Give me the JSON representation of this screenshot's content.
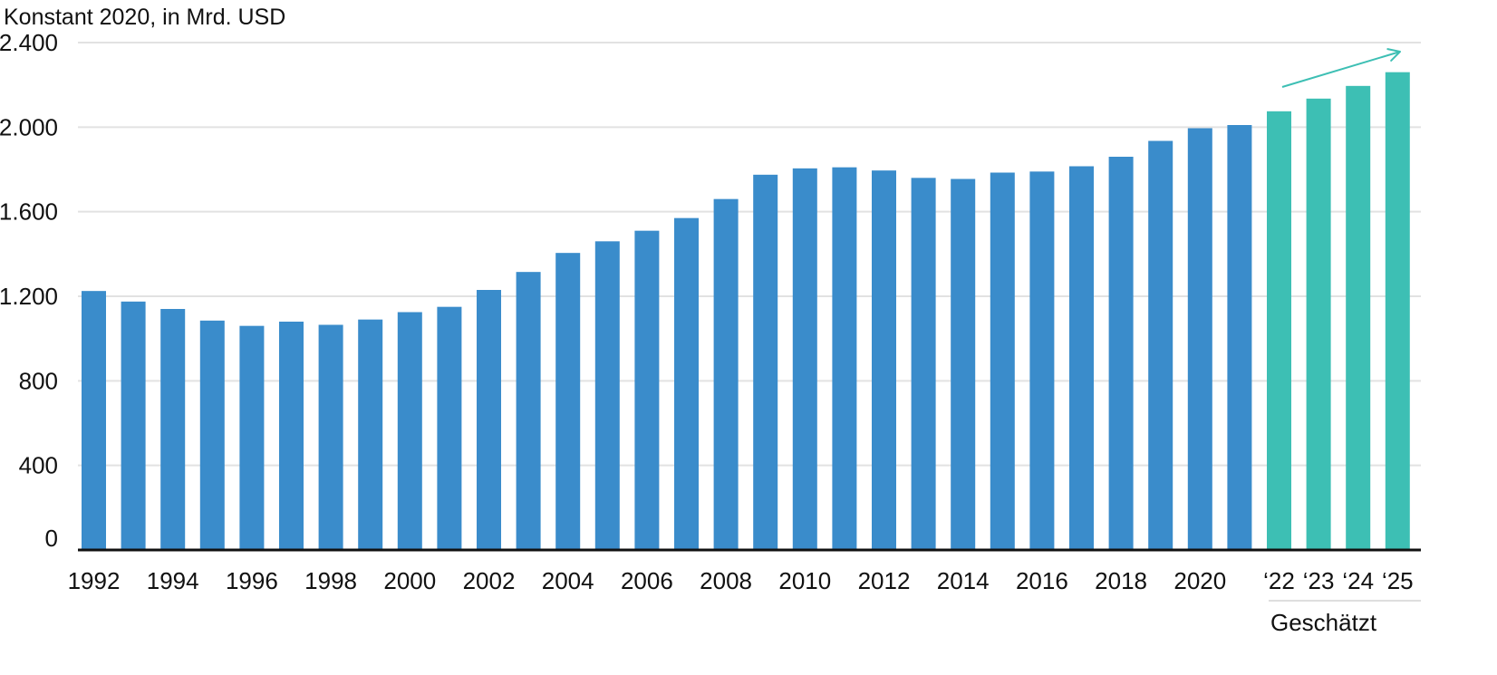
{
  "chart_data": {
    "type": "bar",
    "ylabel": "Konstant 2020, in Mrd. USD",
    "ylim": [
      0,
      2400
    ],
    "yticks": [
      0,
      400,
      800,
      1200,
      1600,
      2000,
      2400
    ],
    "ytick_labels": [
      "0",
      "400",
      "800",
      "1.200",
      "1.600",
      "2.000",
      "2.400"
    ],
    "grid": true,
    "categories": [
      "1992",
      "1993",
      "1994",
      "1995",
      "1996",
      "1997",
      "1998",
      "1999",
      "2000",
      "2001",
      "2002",
      "2003",
      "2004",
      "2005",
      "2006",
      "2007",
      "2008",
      "2009",
      "2010",
      "2011",
      "2012",
      "2013",
      "2014",
      "2015",
      "2016",
      "2017",
      "2018",
      "2019",
      "2020",
      "2021",
      "2022",
      "2023",
      "2024",
      "2025"
    ],
    "xtick_labels": [
      "1992",
      "",
      "1994",
      "",
      "1996",
      "",
      "1998",
      "",
      "2000",
      "",
      "2002",
      "",
      "2004",
      "",
      "2006",
      "",
      "2008",
      "",
      "2010",
      "",
      "2012",
      "",
      "2014",
      "",
      "2016",
      "",
      "2018",
      "",
      "2020",
      "",
      "‘22",
      "‘23",
      "‘24",
      "‘25"
    ],
    "series": [
      {
        "values": [
          1225,
          1175,
          1140,
          1085,
          1060,
          1080,
          1065,
          1090,
          1125,
          1150,
          1230,
          1315,
          1405,
          1460,
          1510,
          1570,
          1660,
          1775,
          1805,
          1810,
          1795,
          1760,
          1755,
          1785,
          1790,
          1815,
          1860,
          1935,
          1995,
          2010,
          2075,
          2135,
          2195,
          2260
        ],
        "estimated": [
          false,
          false,
          false,
          false,
          false,
          false,
          false,
          false,
          false,
          false,
          false,
          false,
          false,
          false,
          false,
          false,
          false,
          false,
          false,
          false,
          false,
          false,
          false,
          false,
          false,
          false,
          false,
          false,
          false,
          false,
          true,
          true,
          true,
          true
        ]
      }
    ],
    "forecast_group_label": "Geschätzt",
    "colors": {
      "actual": "#3a8ccb",
      "estimated": "#3dbfb4",
      "trend_arrow": "#3dbfb4",
      "gridline": "#e2e2e2",
      "baseline": "#111111"
    }
  }
}
